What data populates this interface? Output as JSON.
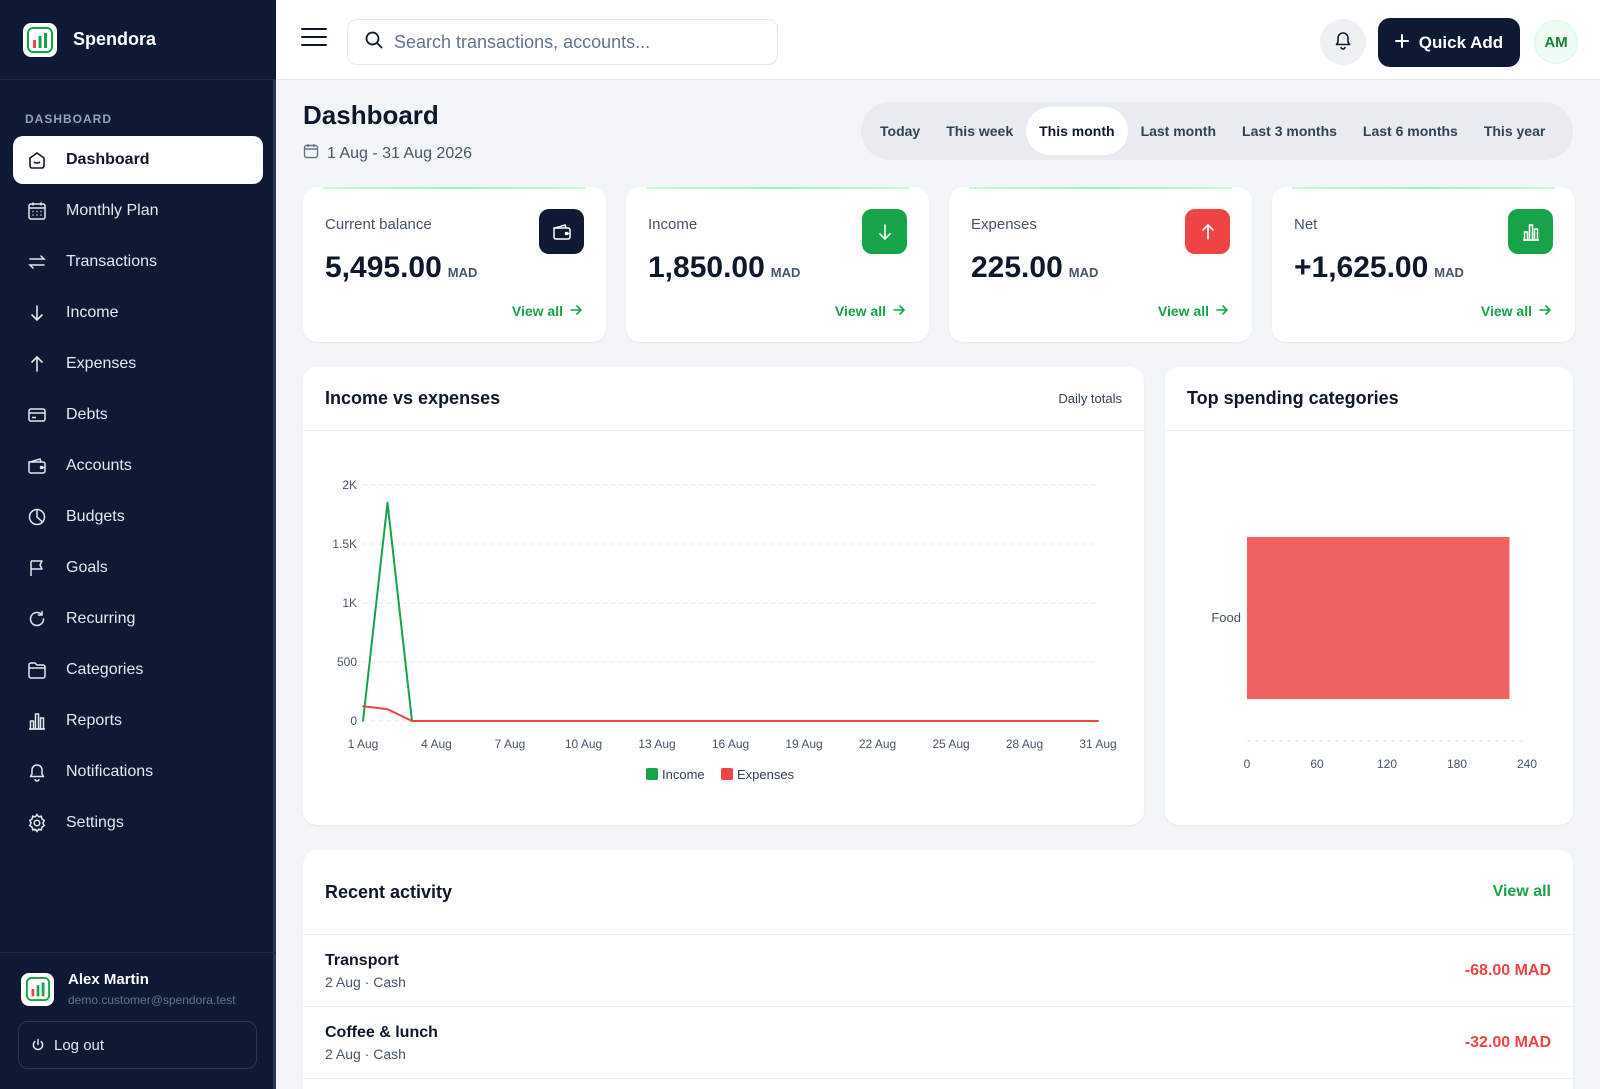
{
  "app": {
    "name": "Spendora"
  },
  "sidebar": {
    "section_label": "DASHBOARD",
    "items": [
      {
        "label": "Dashboard",
        "icon": "dashboard-icon",
        "active": true
      },
      {
        "label": "Monthly Plan",
        "icon": "calendar-grid-icon"
      },
      {
        "label": "Transactions",
        "icon": "transfer-arrows-icon"
      },
      {
        "label": "Income",
        "icon": "arrow-down-icon"
      },
      {
        "label": "Expenses",
        "icon": "arrow-up-icon"
      },
      {
        "label": "Debts",
        "icon": "credit-card-icon"
      },
      {
        "label": "Accounts",
        "icon": "wallet-icon"
      },
      {
        "label": "Budgets",
        "icon": "pie-chart-icon"
      },
      {
        "label": "Goals",
        "icon": "flag-icon"
      },
      {
        "label": "Recurring",
        "icon": "refresh-icon"
      },
      {
        "label": "Categories",
        "icon": "folder-icon"
      },
      {
        "label": "Reports",
        "icon": "bar-chart-icon"
      },
      {
        "label": "Notifications",
        "icon": "bell-icon"
      },
      {
        "label": "Settings",
        "icon": "gear-icon"
      }
    ],
    "user": {
      "name": "Alex Martin",
      "email": "demo.customer@spendora.test"
    },
    "logout_label": "Log out"
  },
  "topbar": {
    "search_placeholder": "Search transactions, accounts...",
    "quick_add_label": "Quick Add",
    "avatar_initials": "AM"
  },
  "page": {
    "title": "Dashboard",
    "date_range": "1 Aug - 31 Aug 2026",
    "periods": [
      "Today",
      "This week",
      "This month",
      "Last month",
      "Last 3 months",
      "Last 6 months",
      "This year"
    ],
    "active_period": "This month"
  },
  "stats": [
    {
      "label": "Current balance",
      "value": "5,495.00",
      "currency": "MAD",
      "link": "View all",
      "icon": "wallet-icon",
      "color": "#0e1a33"
    },
    {
      "label": "Income",
      "value": "1,850.00",
      "currency": "MAD",
      "link": "View all",
      "icon": "arrow-down-icon",
      "color": "#16a34a"
    },
    {
      "label": "Expenses",
      "value": "225.00",
      "currency": "MAD",
      "link": "View all",
      "icon": "arrow-up-icon",
      "color": "#ef4444"
    },
    {
      "label": "Net",
      "value": "+1,625.00",
      "currency": "MAD",
      "link": "View all",
      "icon": "bar-chart-icon",
      "color": "#16a34a"
    }
  ],
  "income_chart": {
    "title": "Income vs expenses",
    "subtitle": "Daily totals",
    "colors": {
      "income": "#16a34a",
      "expenses": "#ef4444"
    }
  },
  "spending_chart": {
    "title": "Top spending categories",
    "color": "#f06262"
  },
  "chart_data": [
    {
      "type": "line",
      "title": "Income vs expenses",
      "x_tick_labels": [
        "1 Aug",
        "4 Aug",
        "7 Aug",
        "10 Aug",
        "13 Aug",
        "16 Aug",
        "19 Aug",
        "22 Aug",
        "25 Aug",
        "28 Aug",
        "31 Aug"
      ],
      "y_tick_labels": [
        "0",
        "500",
        "1K",
        "1.5K",
        "2K"
      ],
      "ylim": [
        0,
        2000
      ],
      "x": [
        1,
        2,
        3,
        4,
        5,
        6,
        7,
        8,
        9,
        10,
        11,
        12,
        13,
        14,
        15,
        16,
        17,
        18,
        19,
        20,
        21,
        22,
        23,
        24,
        25,
        26,
        27,
        28,
        29,
        30,
        31
      ],
      "series": [
        {
          "name": "Income",
          "values": [
            0,
            1850,
            0,
            0,
            0,
            0,
            0,
            0,
            0,
            0,
            0,
            0,
            0,
            0,
            0,
            0,
            0,
            0,
            0,
            0,
            0,
            0,
            0,
            0,
            0,
            0,
            0,
            0,
            0,
            0,
            0
          ]
        },
        {
          "name": "Expenses",
          "values": [
            125,
            100,
            0,
            0,
            0,
            0,
            0,
            0,
            0,
            0,
            0,
            0,
            0,
            0,
            0,
            0,
            0,
            0,
            0,
            0,
            0,
            0,
            0,
            0,
            0,
            0,
            0,
            0,
            0,
            0,
            0
          ]
        }
      ],
      "legend": "bottom",
      "grid": true
    },
    {
      "type": "bar",
      "orientation": "horizontal",
      "title": "Top spending categories",
      "categories": [
        "Food"
      ],
      "values": [
        225
      ],
      "x_tick_labels": [
        "0",
        "60",
        "120",
        "180",
        "240"
      ],
      "xlim": [
        0,
        240
      ],
      "grid": true
    }
  ],
  "recent_activity": {
    "title": "Recent activity",
    "view_all": "View all",
    "items": [
      {
        "name": "Transport",
        "date": "2 Aug",
        "account": "Cash",
        "amount": "-68.00 MAD"
      },
      {
        "name": "Coffee & lunch",
        "date": "2 Aug",
        "account": "Cash",
        "amount": "-32.00 MAD"
      }
    ]
  }
}
